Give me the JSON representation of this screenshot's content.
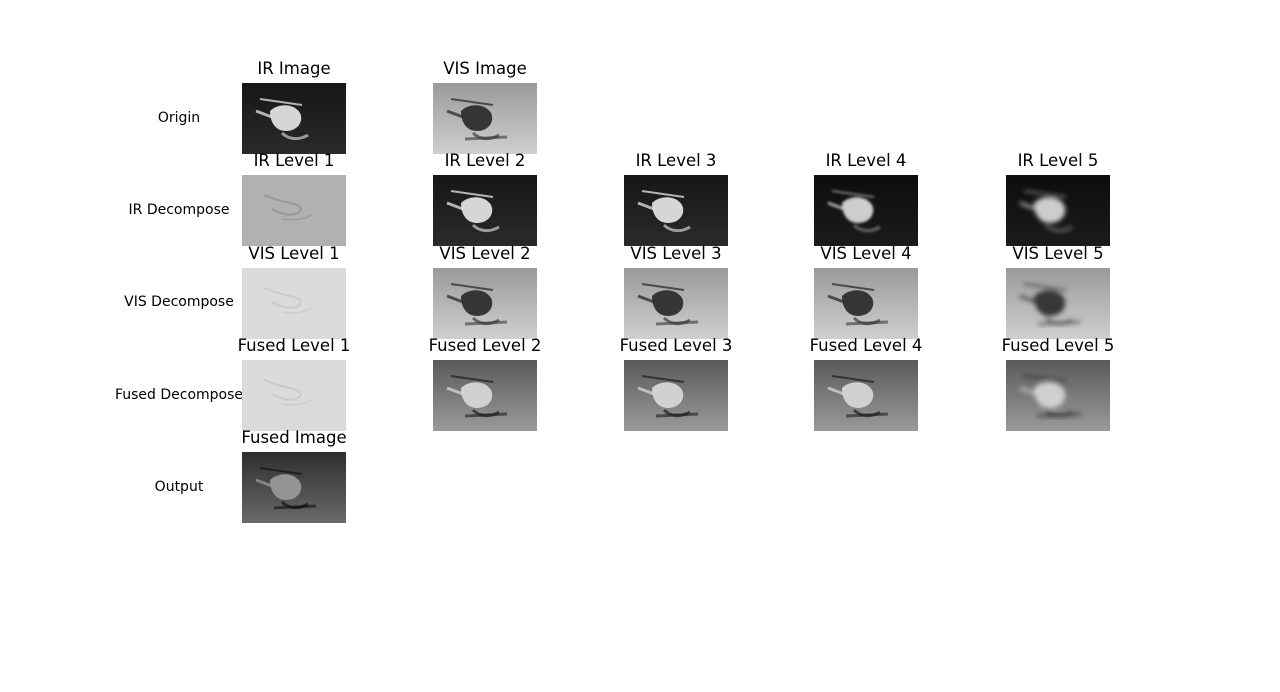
{
  "rows": [
    {
      "label": "Origin"
    },
    {
      "label": "IR Decompose"
    },
    {
      "label": "VIS Decompose"
    },
    {
      "label": "Fused Decompose"
    },
    {
      "label": "Output"
    }
  ],
  "panels": [
    {
      "title": "IR Image",
      "style": "ir",
      "pixelated": false
    },
    {
      "title": "VIS Image",
      "style": "vis",
      "pixelated": false
    },
    {
      "title": "IR Level 1",
      "style": "detail-mid",
      "pixelated": false
    },
    {
      "title": "IR Level 2",
      "style": "ir",
      "pixelated": false
    },
    {
      "title": "IR Level 3",
      "style": "ir",
      "pixelated": false
    },
    {
      "title": "IR Level 4",
      "style": "ir-blur",
      "pixelated": false
    },
    {
      "title": "IR Level 5",
      "style": "ir-blur",
      "pixelated": true
    },
    {
      "title": "VIS Level 1",
      "style": "detail-light",
      "pixelated": false
    },
    {
      "title": "VIS Level 2",
      "style": "vis",
      "pixelated": false
    },
    {
      "title": "VIS Level 3",
      "style": "vis",
      "pixelated": false
    },
    {
      "title": "VIS Level 4",
      "style": "vis",
      "pixelated": false
    },
    {
      "title": "VIS Level 5",
      "style": "vis",
      "pixelated": true
    },
    {
      "title": "Fused Level 1",
      "style": "detail-light",
      "pixelated": false
    },
    {
      "title": "Fused Level 2",
      "style": "fused",
      "pixelated": false
    },
    {
      "title": "Fused Level 3",
      "style": "fused",
      "pixelated": false
    },
    {
      "title": "Fused Level 4",
      "style": "fused",
      "pixelated": false
    },
    {
      "title": "Fused Level 5",
      "style": "fused",
      "pixelated": true
    },
    {
      "title": "Fused Image",
      "style": "output",
      "pixelated": false
    }
  ]
}
